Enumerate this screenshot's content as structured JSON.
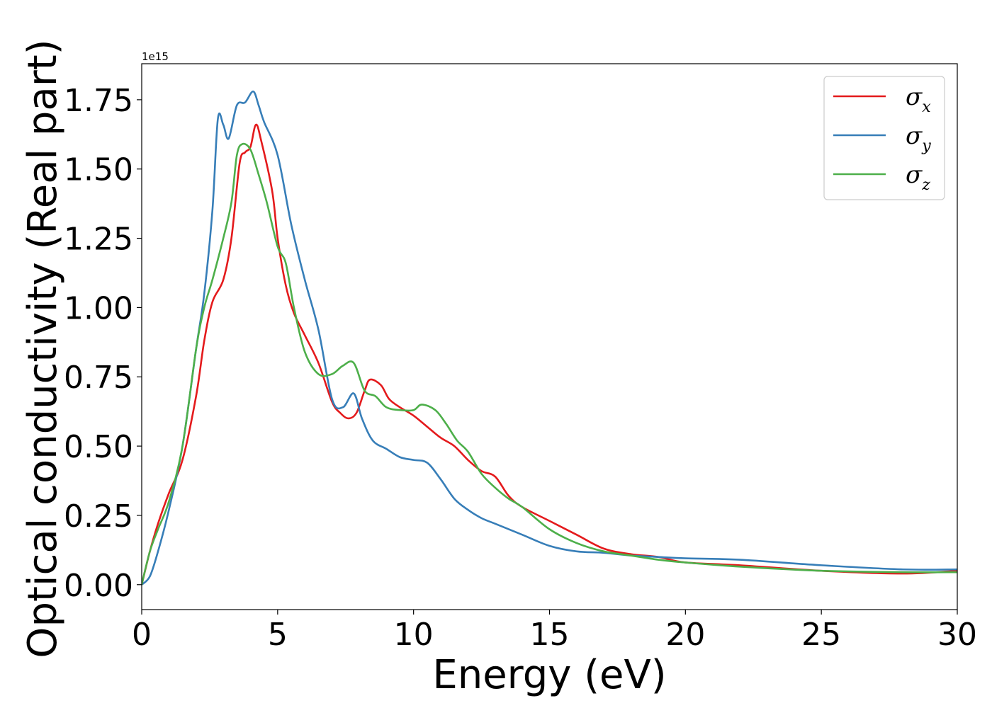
{
  "chart_data": {
    "type": "line",
    "xlabel": "Energy (eV)",
    "ylabel": "Optical conductivity (Real part)",
    "y_offset_label": "1e15",
    "y_multiplier": 1000000000000000.0,
    "xlim": [
      0,
      30
    ],
    "ylim": [
      -0.09,
      1.88
    ],
    "x_ticks": [
      0,
      5,
      10,
      15,
      20,
      25,
      30
    ],
    "x_tick_labels": [
      "0",
      "5",
      "10",
      "15",
      "20",
      "25",
      "30"
    ],
    "y_ticks": [
      0.0,
      0.25,
      0.5,
      0.75,
      1.0,
      1.25,
      1.5,
      1.75
    ],
    "y_tick_labels": [
      "0.00",
      "0.25",
      "0.50",
      "0.75",
      "1.00",
      "1.25",
      "1.50",
      "1.75"
    ],
    "grid": false,
    "legend_position": "top-right",
    "series": [
      {
        "name": "σx",
        "symbol": "σ",
        "subscript": "x",
        "color": "#e41a1c",
        "points": [
          [
            0,
            0
          ],
          [
            0.3,
            0.12
          ],
          [
            0.6,
            0.22
          ],
          [
            1.0,
            0.33
          ],
          [
            1.5,
            0.45
          ],
          [
            2.0,
            0.68
          ],
          [
            2.3,
            0.88
          ],
          [
            2.6,
            1.02
          ],
          [
            3.0,
            1.1
          ],
          [
            3.3,
            1.25
          ],
          [
            3.6,
            1.52
          ],
          [
            3.8,
            1.56
          ],
          [
            4.0,
            1.58
          ],
          [
            4.2,
            1.66
          ],
          [
            4.4,
            1.6
          ],
          [
            4.8,
            1.42
          ],
          [
            5.0,
            1.25
          ],
          [
            5.3,
            1.08
          ],
          [
            5.6,
            0.98
          ],
          [
            6.0,
            0.9
          ],
          [
            6.5,
            0.8
          ],
          [
            7.0,
            0.66
          ],
          [
            7.3,
            0.62
          ],
          [
            7.6,
            0.6
          ],
          [
            7.9,
            0.62
          ],
          [
            8.2,
            0.7
          ],
          [
            8.4,
            0.74
          ],
          [
            8.8,
            0.72
          ],
          [
            9.1,
            0.67
          ],
          [
            9.5,
            0.64
          ],
          [
            10.0,
            0.61
          ],
          [
            10.5,
            0.57
          ],
          [
            11.0,
            0.53
          ],
          [
            11.5,
            0.5
          ],
          [
            12.0,
            0.45
          ],
          [
            12.5,
            0.41
          ],
          [
            13.0,
            0.39
          ],
          [
            13.5,
            0.32
          ],
          [
            14.0,
            0.28
          ],
          [
            15.0,
            0.23
          ],
          [
            16.0,
            0.18
          ],
          [
            17.0,
            0.13
          ],
          [
            18.0,
            0.11
          ],
          [
            19.0,
            0.1
          ],
          [
            20.0,
            0.08
          ],
          [
            22.0,
            0.07
          ],
          [
            25.0,
            0.05
          ],
          [
            28.0,
            0.04
          ],
          [
            30.0,
            0.05
          ]
        ]
      },
      {
        "name": "σy",
        "symbol": "σ",
        "subscript": "y",
        "color": "#377eb8",
        "points": [
          [
            0,
            0
          ],
          [
            0.3,
            0.03
          ],
          [
            0.6,
            0.12
          ],
          [
            1.0,
            0.27
          ],
          [
            1.5,
            0.5
          ],
          [
            2.0,
            0.85
          ],
          [
            2.3,
            1.05
          ],
          [
            2.6,
            1.35
          ],
          [
            2.8,
            1.68
          ],
          [
            3.0,
            1.66
          ],
          [
            3.2,
            1.61
          ],
          [
            3.5,
            1.73
          ],
          [
            3.8,
            1.74
          ],
          [
            4.1,
            1.78
          ],
          [
            4.3,
            1.73
          ],
          [
            4.5,
            1.67
          ],
          [
            5.0,
            1.55
          ],
          [
            5.5,
            1.3
          ],
          [
            6.0,
            1.1
          ],
          [
            6.5,
            0.92
          ],
          [
            7.0,
            0.67
          ],
          [
            7.4,
            0.64
          ],
          [
            7.8,
            0.69
          ],
          [
            8.1,
            0.6
          ],
          [
            8.5,
            0.52
          ],
          [
            9.0,
            0.49
          ],
          [
            9.5,
            0.46
          ],
          [
            10.0,
            0.45
          ],
          [
            10.5,
            0.44
          ],
          [
            11.0,
            0.38
          ],
          [
            11.5,
            0.31
          ],
          [
            12.0,
            0.27
          ],
          [
            12.5,
            0.24
          ],
          [
            13.0,
            0.22
          ],
          [
            14.0,
            0.18
          ],
          [
            15.0,
            0.14
          ],
          [
            16.0,
            0.12
          ],
          [
            17.0,
            0.115
          ],
          [
            18.0,
            0.105
          ],
          [
            19.0,
            0.1
          ],
          [
            20.0,
            0.095
          ],
          [
            22.0,
            0.09
          ],
          [
            25.0,
            0.07
          ],
          [
            28.0,
            0.055
          ],
          [
            30.0,
            0.055
          ]
        ]
      },
      {
        "name": "σz",
        "symbol": "σ",
        "subscript": "z",
        "color": "#4daf4a",
        "points": [
          [
            0,
            0
          ],
          [
            0.3,
            0.12
          ],
          [
            0.6,
            0.2
          ],
          [
            1.0,
            0.3
          ],
          [
            1.5,
            0.5
          ],
          [
            2.0,
            0.85
          ],
          [
            2.3,
            1.0
          ],
          [
            2.6,
            1.1
          ],
          [
            3.0,
            1.25
          ],
          [
            3.3,
            1.38
          ],
          [
            3.5,
            1.55
          ],
          [
            3.7,
            1.59
          ],
          [
            4.0,
            1.57
          ],
          [
            4.3,
            1.48
          ],
          [
            4.6,
            1.38
          ],
          [
            5.0,
            1.22
          ],
          [
            5.3,
            1.16
          ],
          [
            5.6,
            1.0
          ],
          [
            6.0,
            0.84
          ],
          [
            6.5,
            0.76
          ],
          [
            7.0,
            0.76
          ],
          [
            7.4,
            0.79
          ],
          [
            7.8,
            0.8
          ],
          [
            8.2,
            0.7
          ],
          [
            8.6,
            0.68
          ],
          [
            9.0,
            0.64
          ],
          [
            9.5,
            0.63
          ],
          [
            10.0,
            0.63
          ],
          [
            10.3,
            0.65
          ],
          [
            10.8,
            0.63
          ],
          [
            11.2,
            0.58
          ],
          [
            11.6,
            0.52
          ],
          [
            12.0,
            0.48
          ],
          [
            12.5,
            0.4
          ],
          [
            13.0,
            0.35
          ],
          [
            13.5,
            0.31
          ],
          [
            14.0,
            0.28
          ],
          [
            15.0,
            0.2
          ],
          [
            16.0,
            0.15
          ],
          [
            17.0,
            0.12
          ],
          [
            18.0,
            0.105
          ],
          [
            19.0,
            0.09
          ],
          [
            20.0,
            0.08
          ],
          [
            22.0,
            0.065
          ],
          [
            25.0,
            0.05
          ],
          [
            28.0,
            0.045
          ],
          [
            30.0,
            0.045
          ]
        ]
      }
    ]
  }
}
